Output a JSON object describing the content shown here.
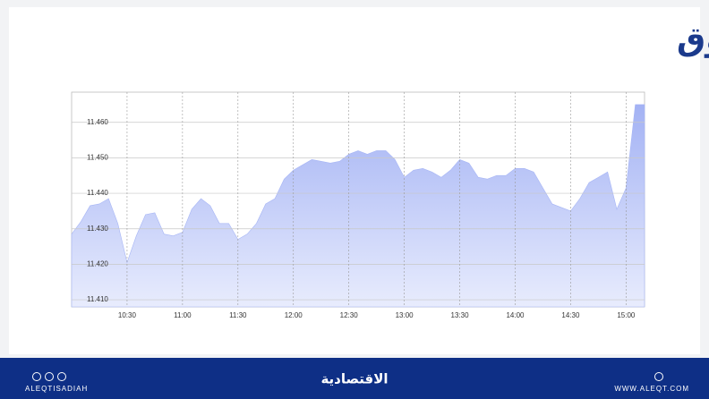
{
  "header": {
    "title": "مؤشر السوق"
  },
  "chart_data": {
    "type": "area",
    "color": "#a6b5f5",
    "x": [
      "10:00",
      "10:05",
      "10:10",
      "10:15",
      "10:20",
      "10:25",
      "10:30",
      "10:35",
      "10:40",
      "10:45",
      "10:50",
      "10:55",
      "11:00",
      "11:05",
      "11:10",
      "11:15",
      "11:20",
      "11:25",
      "11:30",
      "11:35",
      "11:40",
      "11:45",
      "11:50",
      "11:55",
      "12:00",
      "12:05",
      "12:10",
      "12:15",
      "12:20",
      "12:25",
      "12:30",
      "12:35",
      "12:40",
      "12:45",
      "12:50",
      "12:55",
      "13:00",
      "13:05",
      "13:10",
      "13:15",
      "13:20",
      "13:25",
      "13:30",
      "13:35",
      "13:40",
      "13:45",
      "13:50",
      "13:55",
      "14:00",
      "14:05",
      "14:10",
      "14:15",
      "14:20",
      "14:25",
      "14:30",
      "14:35",
      "14:40",
      "14:45",
      "14:50",
      "14:55",
      "15:00",
      "15:05",
      "15:10"
    ],
    "values": [
      11428.5,
      11432,
      11436.5,
      11437,
      11438.5,
      11431.5,
      11420.5,
      11428,
      11434,
      11434.5,
      11428.5,
      11428,
      11429,
      11435.5,
      11438.5,
      11436.5,
      11431.5,
      11431.5,
      11427,
      11428.5,
      11431.5,
      11437,
      11438.5,
      11444,
      11446.5,
      11448,
      11449.5,
      11449,
      11448.5,
      11449,
      11451,
      11452,
      11451,
      11452,
      11452,
      11449.5,
      11444.5,
      11446.5,
      11447,
      11446,
      11444.5,
      11446.5,
      11449.5,
      11448.5,
      11444.5,
      11444,
      11445,
      11445,
      11447,
      11447,
      11446,
      11441.5,
      11437,
      11436,
      11435,
      11438.5,
      11443,
      11444.5,
      11446,
      11435.5,
      11441.5,
      11465,
      11465
    ],
    "xlim": [
      "10:00",
      "15:10"
    ],
    "xticks": [
      "10:30",
      "11:00",
      "11:30",
      "12:00",
      "12:30",
      "13:00",
      "13:30",
      "14:00",
      "14:30",
      "15:00"
    ],
    "ylim": [
      11408,
      11468.5
    ],
    "yticks": [
      {
        "value": 11410,
        "label": "11.410"
      },
      {
        "value": 11420,
        "label": "11.420"
      },
      {
        "value": 11430,
        "label": "11.430"
      },
      {
        "value": 11440,
        "label": "11.440"
      },
      {
        "value": 11450,
        "label": "11.450"
      },
      {
        "value": 11460,
        "label": "11.460"
      }
    ],
    "grid": true
  },
  "footer": {
    "handle": "ALEQTISADIAH",
    "brand": "الاقتصادية",
    "website": "WWW.ALEQT.COM"
  }
}
